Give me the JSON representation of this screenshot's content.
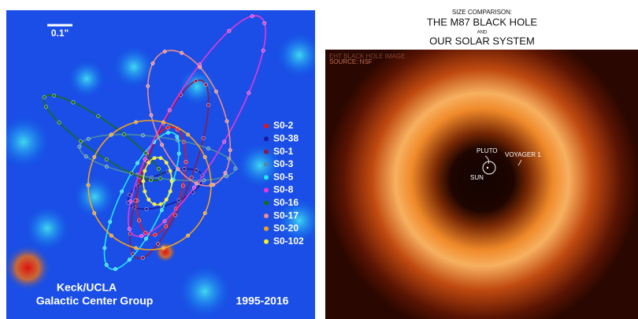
{
  "left_panel": {
    "scale_bar": "0.1\"",
    "legend": [
      {
        "name": "S0-2",
        "color": "#e8141c"
      },
      {
        "name": "S0-38",
        "color": "#1a1a9a"
      },
      {
        "name": "S0-1",
        "color": "#8b1a4a"
      },
      {
        "name": "S0-3",
        "color": "#4a8aa8"
      },
      {
        "name": "S0-5",
        "color": "#20e8f0"
      },
      {
        "name": "S0-8",
        "color": "#e838d8"
      },
      {
        "name": "S0-16",
        "color": "#1a6a1a"
      },
      {
        "name": "S0-17",
        "color": "#f08a8a"
      },
      {
        "name": "S0-20",
        "color": "#f5a020"
      },
      {
        "name": "S0-102",
        "color": "#f5f020"
      }
    ],
    "credit": [
      "Keck/UCLA",
      "Galactic Center Group"
    ],
    "years": "1995-2016"
  },
  "right_panel": {
    "title": [
      "SIZE COMPARISON:",
      "THE M87 BLACK HOLE",
      "AND",
      "OUR SOLAR SYSTEM"
    ],
    "source": [
      "EHT BLACK HOLE IMAGE",
      "SOURCE: NSF"
    ],
    "labels": {
      "pluto": "PLUTO",
      "voyager": "VOYAGER 1",
      "sun": "SUN"
    }
  }
}
